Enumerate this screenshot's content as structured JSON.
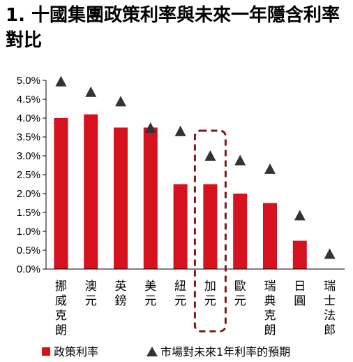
{
  "chart_data": {
    "type": "bar",
    "title": "1. 十國集團政策利率與未來一年隱含利率對比",
    "xlabel": "",
    "ylabel": "",
    "categories": [
      "挪威克朗",
      "澳元",
      "英鎊",
      "美元",
      "紐元",
      "加元",
      "歐元",
      "瑞典克朗",
      "日圓",
      "瑞士法郎"
    ],
    "series": [
      {
        "name": "政策利率",
        "kind": "bar",
        "values": [
          4.0,
          4.1,
          3.75,
          3.75,
          2.25,
          2.25,
          2.0,
          1.75,
          0.75,
          0.0
        ]
      },
      {
        "name": "市場對未來1年利率的預期",
        "kind": "marker",
        "values": [
          4.97,
          4.69,
          4.44,
          3.74,
          3.65,
          3.0,
          2.88,
          2.65,
          1.42,
          0.4
        ]
      }
    ],
    "yticks": [
      "0.0%",
      "0.5%",
      "1.0%",
      "1.5%",
      "2.0%",
      "2.5%",
      "3.0%",
      "3.5%",
      "4.0%",
      "4.5%",
      "5.0%"
    ],
    "ylim": [
      0,
      5.0
    ],
    "grid": false,
    "legend_position": "bottom",
    "highlight_category": "加元",
    "colors": {
      "bar": "#d7121f",
      "marker": "#333333",
      "highlight": "#7b1a1a"
    }
  }
}
